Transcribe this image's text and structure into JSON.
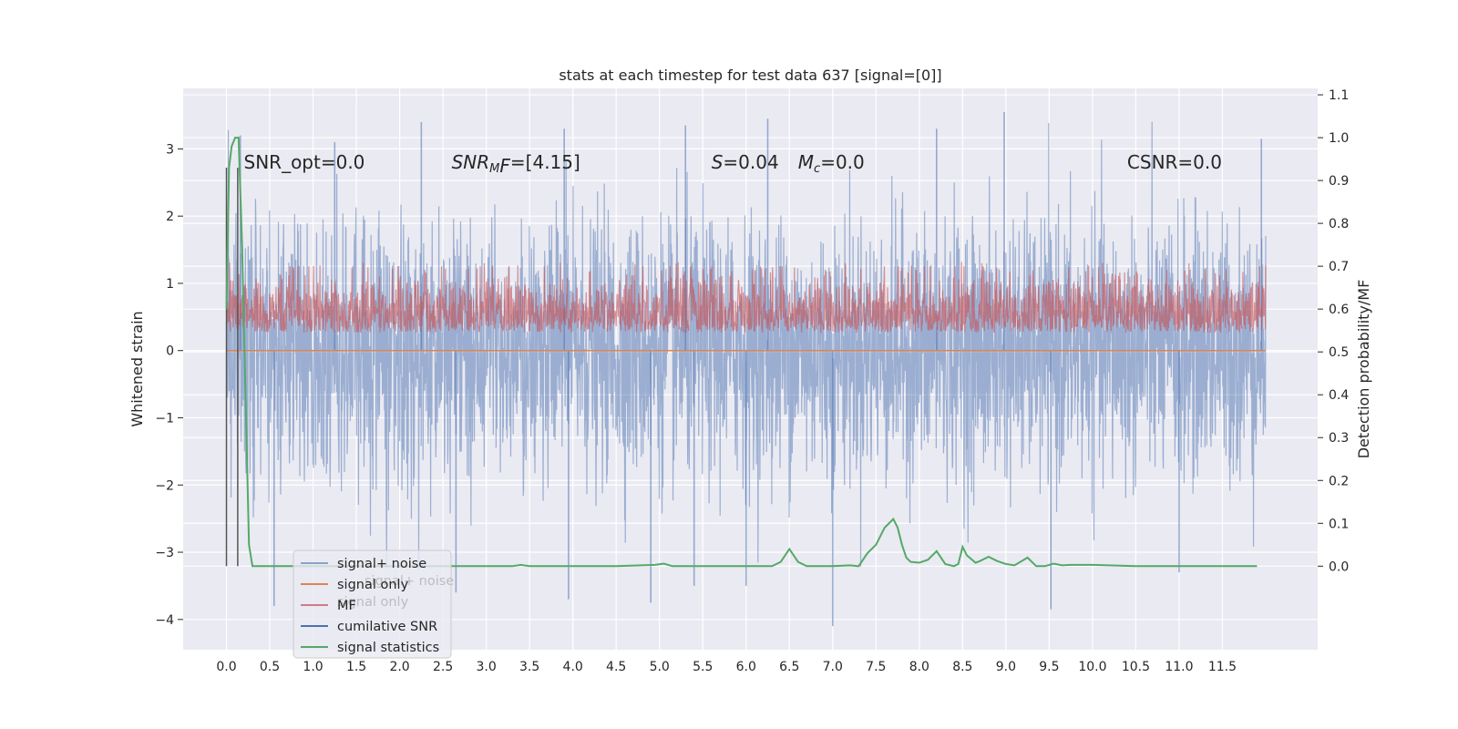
{
  "chart_data": {
    "type": "line",
    "title": "stats at each timestep for test data 637 [signal=[0]]",
    "xlabel": "",
    "ylabel_left": "Whitened strain",
    "ylabel_right": "Detection probability/MF",
    "xlim": [
      -0.5,
      12.6
    ],
    "ylim_left": [
      -4.45,
      3.9
    ],
    "ylim_right": [
      -0.195,
      1.115
    ],
    "x_ticks": [
      0.0,
      0.5,
      1.0,
      1.5,
      2.0,
      2.5,
      3.0,
      3.5,
      4.0,
      4.5,
      5.0,
      5.5,
      6.0,
      6.5,
      7.0,
      7.5,
      8.0,
      8.5,
      9.0,
      9.5,
      10.0,
      10.5,
      11.0,
      11.5
    ],
    "x_tick_labels": [
      "0.0",
      "0.5",
      "1.0",
      "1.5",
      "2.0",
      "2.5",
      "3.0",
      "3.5",
      "4.0",
      "4.5",
      "5.0",
      "5.5",
      "6.0",
      "6.5",
      "7.0",
      "7.5",
      "8.0",
      "8.5",
      "9.0",
      "9.5",
      "10.0",
      "10.5",
      "11.0",
      "11.5"
    ],
    "y_left_ticks": [
      -4,
      -3,
      -2,
      -1,
      0,
      1,
      2,
      3
    ],
    "y_left_tick_labels": [
      "−4",
      "−3",
      "−2",
      "−1",
      "0",
      "1",
      "2",
      "3"
    ],
    "y_right_ticks": [
      0.0,
      0.1,
      0.2,
      0.3,
      0.4,
      0.5,
      0.6,
      0.7,
      0.8,
      0.9,
      1.0,
      1.1
    ],
    "y_right_tick_labels": [
      "0.0",
      "0.1",
      "0.2",
      "0.3",
      "0.4",
      "0.5",
      "0.6",
      "0.7",
      "0.8",
      "0.9",
      "1.0",
      "1.1"
    ],
    "grid": true,
    "legend_position": "lower-left",
    "annotations": [
      {
        "x": 0.2,
        "y": 2.8,
        "text": "SNR_opt=0.0"
      },
      {
        "x": 2.6,
        "y": 2.8,
        "text": "SNR_MF=[4.15]",
        "base": "SNR",
        "sub": "M",
        "rest": "F=[4.15]"
      },
      {
        "x": 5.6,
        "y": 2.8,
        "text": "S=0.04",
        "italic": "S",
        "rest": "=0.04"
      },
      {
        "x": 6.6,
        "y": 2.8,
        "text": "M_c=0.0",
        "italic": "M",
        "sub": "c",
        "rest": "=0.0"
      },
      {
        "x": 10.4,
        "y": 2.8,
        "text": "CSNR=0.0"
      }
    ],
    "vertical_lines": [
      0.0,
      0.13
    ],
    "series": [
      {
        "name": "signal+ noise",
        "axis": "left",
        "color": "#4c72b0",
        "alpha": 0.5,
        "x_range": [
          0.0,
          12.0
        ],
        "envelope": {
          "typical_upper": 1.4,
          "typical_lower": -1.4,
          "extreme_upper": 3.5,
          "extreme_lower": -4.1
        },
        "spikes": [
          {
            "x": 0.16,
            "y": 3.2
          },
          {
            "x": 1.25,
            "y": 3.1
          },
          {
            "x": 2.25,
            "y": 3.4
          },
          {
            "x": 3.9,
            "y": 3.3
          },
          {
            "x": 5.3,
            "y": 3.35
          },
          {
            "x": 6.25,
            "y": 3.45
          },
          {
            "x": 8.2,
            "y": 3.3
          },
          {
            "x": 8.98,
            "y": 3.55
          },
          {
            "x": 11.95,
            "y": 3.15
          },
          {
            "x": 0.55,
            "y": -3.8
          },
          {
            "x": 2.65,
            "y": -3.6
          },
          {
            "x": 3.95,
            "y": -3.7
          },
          {
            "x": 4.9,
            "y": -3.75
          },
          {
            "x": 5.4,
            "y": -3.5
          },
          {
            "x": 6.0,
            "y": -3.5
          },
          {
            "x": 7.0,
            "y": -4.1
          },
          {
            "x": 9.52,
            "y": -3.85
          },
          {
            "x": 11.0,
            "y": -3.3
          }
        ]
      },
      {
        "name": "signal only",
        "axis": "left",
        "color": "#dd8452",
        "x": [
          0.0,
          12.0
        ],
        "y": [
          0.0,
          0.0
        ]
      },
      {
        "name": "MF",
        "axis": "right",
        "color": "#c44e52",
        "alpha": 0.6,
        "x_range": [
          0.0,
          12.0
        ],
        "envelope": {
          "base": 0.545,
          "typical_top": 0.66,
          "max": 0.71
        }
      },
      {
        "name": "cumilative SNR",
        "axis": "left",
        "color": "#4c72b0",
        "x": [],
        "y": []
      },
      {
        "name": "signal statistics",
        "axis": "right",
        "color": "#55a868",
        "x": [
          0.0,
          0.03,
          0.06,
          0.1,
          0.14,
          0.18,
          0.22,
          0.26,
          0.3,
          0.5,
          1.0,
          1.5,
          2.0,
          2.5,
          3.0,
          3.3,
          3.4,
          3.5,
          4.0,
          4.5,
          4.95,
          5.05,
          5.15,
          5.5,
          6.0,
          6.3,
          6.4,
          6.5,
          6.6,
          6.7,
          7.0,
          7.2,
          7.3,
          7.4,
          7.5,
          7.6,
          7.7,
          7.75,
          7.8,
          7.85,
          7.9,
          8.0,
          8.1,
          8.2,
          8.3,
          8.4,
          8.45,
          8.5,
          8.55,
          8.65,
          8.7,
          8.8,
          8.9,
          9.0,
          9.1,
          9.25,
          9.35,
          9.45,
          9.55,
          9.65,
          9.75,
          10.0,
          10.5,
          11.0,
          11.5,
          11.9
        ],
        "y": [
          0.6,
          0.93,
          0.98,
          1.0,
          1.0,
          0.75,
          0.4,
          0.05,
          0.0,
          0.0,
          0.0,
          0.0,
          0.0,
          0.0,
          0.0,
          0.0,
          0.003,
          0.0,
          0.0,
          0.0,
          0.003,
          0.006,
          0.0,
          0.0,
          0.0,
          0.0,
          0.01,
          0.04,
          0.01,
          0.0,
          0.0,
          0.002,
          0.0,
          0.03,
          0.05,
          0.09,
          0.11,
          0.09,
          0.05,
          0.02,
          0.01,
          0.008,
          0.015,
          0.035,
          0.005,
          0.0,
          0.005,
          0.045,
          0.025,
          0.008,
          0.012,
          0.022,
          0.012,
          0.005,
          0.002,
          0.02,
          0.0,
          0.0,
          0.006,
          0.002,
          0.003,
          0.003,
          0.0,
          0.0,
          0.0,
          0.0
        ]
      }
    ],
    "legend_ghost_labels": [
      "signal+ noise",
      "signal only"
    ],
    "colors": {
      "axes_bg": "#eaeaf2",
      "grid": "#ffffff"
    }
  }
}
